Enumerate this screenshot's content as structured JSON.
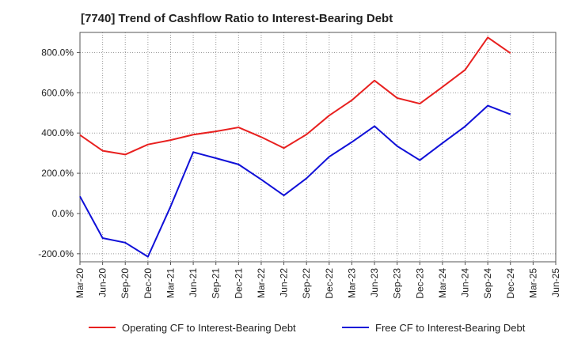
{
  "chart_data": {
    "type": "line",
    "title": "[7740]  Trend of Cashflow Ratio to Interest-Bearing Debt",
    "xlabel": "",
    "ylabel": "",
    "categories": [
      "Mar-20",
      "Jun-20",
      "Sep-20",
      "Dec-20",
      "Mar-21",
      "Jun-21",
      "Sep-21",
      "Dec-21",
      "Mar-22",
      "Jun-22",
      "Sep-22",
      "Dec-22",
      "Mar-23",
      "Jun-23",
      "Sep-23",
      "Dec-23",
      "Mar-24",
      "Jun-24",
      "Sep-24",
      "Dec-24",
      "Mar-25",
      "Jun-25"
    ],
    "ylim": [
      -240,
      900
    ],
    "yticks": [
      -200,
      0,
      200,
      400,
      600,
      800
    ],
    "ytick_labels": [
      "-200.0%",
      "0.0%",
      "200.0%",
      "400.0%",
      "600.0%",
      "800.0%"
    ],
    "grid": true,
    "legend_position": "bottom",
    "series": [
      {
        "name": "Operating CF to Interest-Bearing Debt",
        "color": "#e8201f",
        "values": [
          390,
          312,
          293,
          343,
          365,
          392,
          408,
          428,
          380,
          325,
          393,
          487,
          563,
          661,
          574,
          546,
          629,
          714,
          875,
          797,
          null,
          null
        ]
      },
      {
        "name": "Free CF to Interest-Bearing Debt",
        "color": "#1010d8",
        "values": [
          85,
          -122,
          -145,
          -215,
          35,
          305,
          275,
          244,
          169,
          90,
          175,
          282,
          355,
          434,
          335,
          265,
          350,
          433,
          536,
          493,
          null,
          null
        ]
      }
    ]
  }
}
